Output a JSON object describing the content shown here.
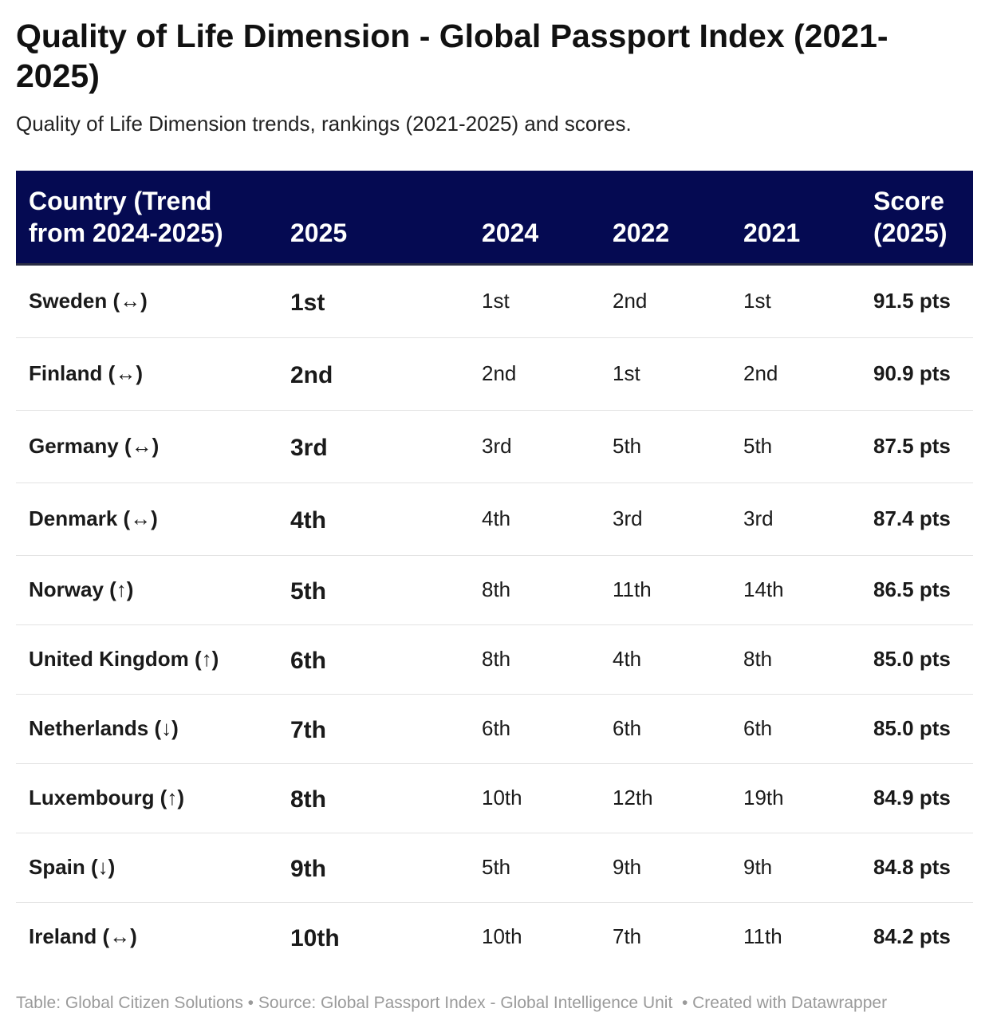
{
  "header": {
    "title": "Quality of Life Dimension - Global Passport Index (2021-2025)",
    "subtitle": "Quality of Life Dimension trends, rankings (2021-2025) and scores."
  },
  "table": {
    "columns": [
      "Country (Trend from 2024-2025)",
      "2025",
      "2024",
      "2022",
      "2021",
      "Score (2025)"
    ],
    "rows": [
      [
        "Sweden (↔)",
        "1st",
        "1st",
        "2nd",
        "1st",
        "91.5 pts"
      ],
      [
        "Finland (↔)",
        "2nd",
        "2nd",
        "1st",
        "2nd",
        "90.9 pts"
      ],
      [
        "Germany (↔)",
        "3rd",
        "3rd",
        "5th",
        "5th",
        "87.5 pts"
      ],
      [
        "Denmark (↔)",
        "4th",
        "4th",
        "3rd",
        "3rd",
        "87.4 pts"
      ],
      [
        "Norway (↑)",
        "5th",
        "8th",
        "11th",
        "14th",
        "86.5 pts"
      ],
      [
        "United Kingdom (↑)",
        "6th",
        "8th",
        "4th",
        "8th",
        "85.0 pts"
      ],
      [
        "Netherlands (↓)",
        "7th",
        "6th",
        "6th",
        "6th",
        "85.0 pts"
      ],
      [
        "Luxembourg (↑)",
        "8th",
        "10th",
        "12th",
        "19th",
        "84.9 pts"
      ],
      [
        "Spain (↓)",
        "9th",
        "5th",
        "9th",
        "9th",
        "84.8 pts"
      ],
      [
        "Ireland (↔)",
        "10th",
        "10th",
        "7th",
        "11th",
        "84.2 pts"
      ]
    ]
  },
  "footer": "Table: Global Citizen Solutions • Source: Global Passport Index - Global Intelligence Unit  • Created with Datawrapper"
}
